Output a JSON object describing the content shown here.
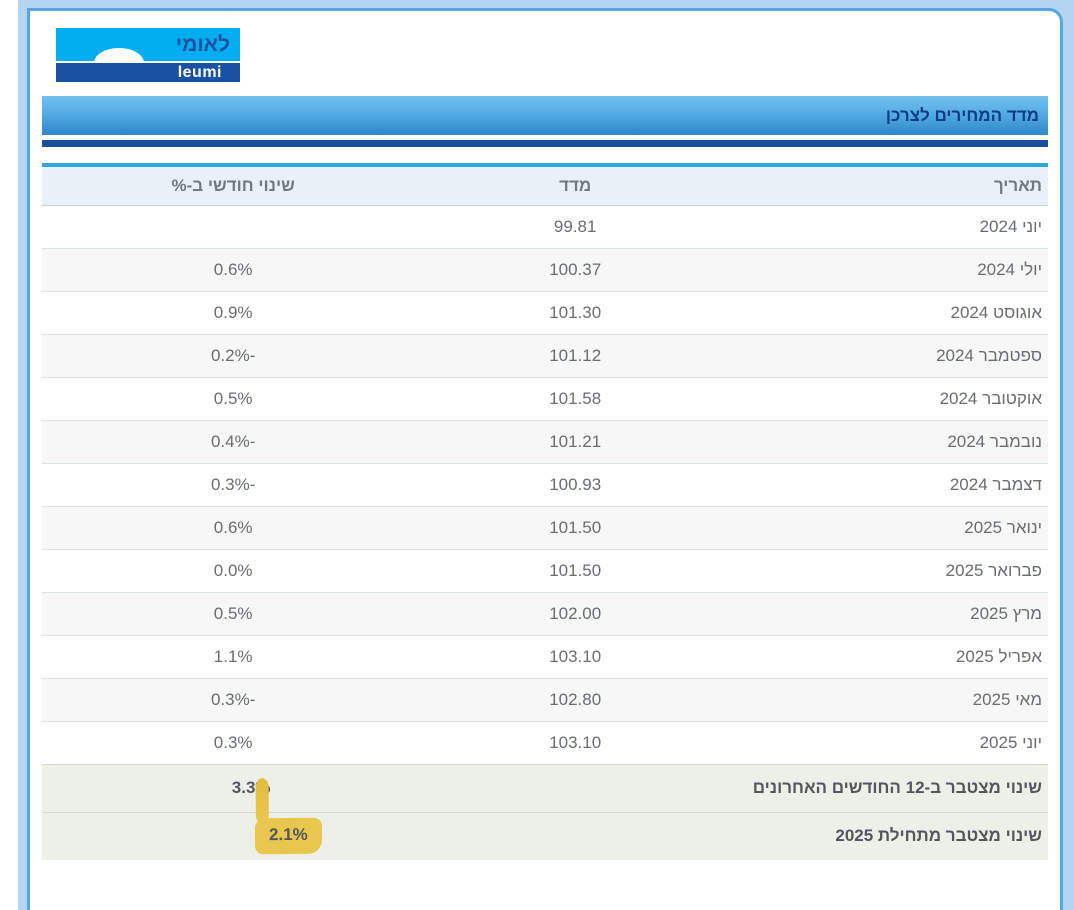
{
  "logo": {
    "hebrew_text": "לאומי",
    "latin_text": "leumi",
    "cyan_color": "#00AEEF",
    "navy_color": "#1B51A3"
  },
  "title_bar": {
    "title": "מדד המחירים לצרכן",
    "text_color": "#0D3C86",
    "gradient_top": "#74C1F0",
    "gradient_bottom": "#2F86C9"
  },
  "frame": {
    "band_color": "#B5D6F3",
    "line_color": "#57A5E6"
  },
  "table": {
    "headers": {
      "date": "תאריך",
      "index": "מדד",
      "change": "שינוי חודשי ב-%"
    },
    "header_accent_color": "#2BA9DC",
    "rows": [
      {
        "date": "יוני 2024",
        "index": "99.81",
        "change": ""
      },
      {
        "date": "יולי 2024",
        "index": "100.37",
        "change": "0.6%"
      },
      {
        "date": "אוגוסט 2024",
        "index": "101.30",
        "change": "0.9%"
      },
      {
        "date": "ספטמבר 2024",
        "index": "101.12",
        "change": "-0.2%"
      },
      {
        "date": "אוקטובר 2024",
        "index": "101.58",
        "change": "0.5%"
      },
      {
        "date": "נובמבר 2024",
        "index": "101.21",
        "change": "-0.4%"
      },
      {
        "date": "דצמבר 2024",
        "index": "100.93",
        "change": "-0.3%"
      },
      {
        "date": "ינואר 2025",
        "index": "101.50",
        "change": "0.6%"
      },
      {
        "date": "פברואר 2025",
        "index": "101.50",
        "change": "0.0%"
      },
      {
        "date": "מרץ 2025",
        "index": "102.00",
        "change": "0.5%"
      },
      {
        "date": "אפריל 2025",
        "index": "103.10",
        "change": "1.1%"
      },
      {
        "date": "מאי 2025",
        "index": "102.80",
        "change": "-0.3%"
      },
      {
        "date": "יוני 2025",
        "index": "103.10",
        "change": "0.3%"
      }
    ],
    "summary": [
      {
        "label": "שינוי מצטבר ב-12 החודשים האחרונים",
        "value": "3.3%",
        "highlighted": false
      },
      {
        "label": "שינוי מצטבר מתחילת 2025",
        "value": "2.1%",
        "highlighted": true
      }
    ],
    "highlight_color": "#E9C74F"
  }
}
